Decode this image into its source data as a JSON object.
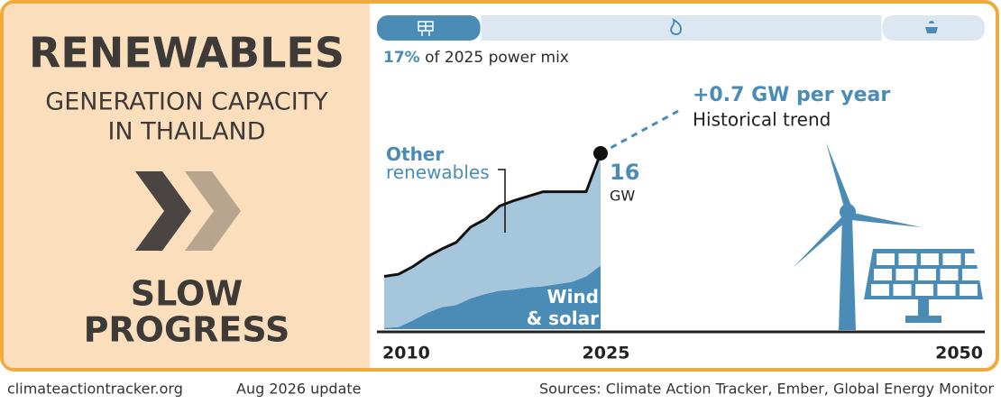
{
  "panel": {
    "title": "RENEWABLES",
    "subtitle_1": "GENERATION CAPACITY",
    "subtitle_2": "IN THAILAND",
    "verdict_1": "SLOW",
    "verdict_2": "PROGRESS"
  },
  "power_mix": {
    "values": [
      17,
      66,
      17
    ],
    "value_labels": [
      "17%",
      null,
      null
    ],
    "caption": "of 2025 power mix"
  },
  "chart_data": {
    "type": "area",
    "stacked": true,
    "x": [
      2010,
      2011,
      2012,
      2013,
      2014,
      2015,
      2016,
      2017,
      2018,
      2019,
      2020,
      2021,
      2022,
      2023,
      2024,
      2025
    ],
    "series": [
      {
        "name": "Wind & solar",
        "color": "#4a8cb6",
        "values": [
          0.1,
          0.2,
          0.8,
          1.5,
          2.0,
          2.2,
          2.8,
          3.2,
          3.5,
          3.6,
          3.8,
          3.9,
          4.1,
          4.3,
          4.8,
          5.8
        ]
      },
      {
        "name": "Other renewables",
        "color": "#a6c6dc",
        "values": [
          4.7,
          4.8,
          4.9,
          5.1,
          5.3,
          5.7,
          6.5,
          6.8,
          7.7,
          8.1,
          8.3,
          8.6,
          8.4,
          8.2,
          7.7,
          10.2
        ]
      }
    ],
    "xlim": [
      2010,
      2050
    ],
    "xticks": [
      2010,
      2025,
      2050
    ],
    "ylim": [
      0,
      16
    ],
    "end_total": 16,
    "end_unit": "GW",
    "trend_title": "+0.7 GW per year",
    "trend_caption": "Historical trend"
  },
  "footer": {
    "site": "climateactiontracker.org",
    "update": "Aug 2026 update",
    "sources": "Sources: Climate Action Tracker, Ember, Global Energy Monitor"
  }
}
